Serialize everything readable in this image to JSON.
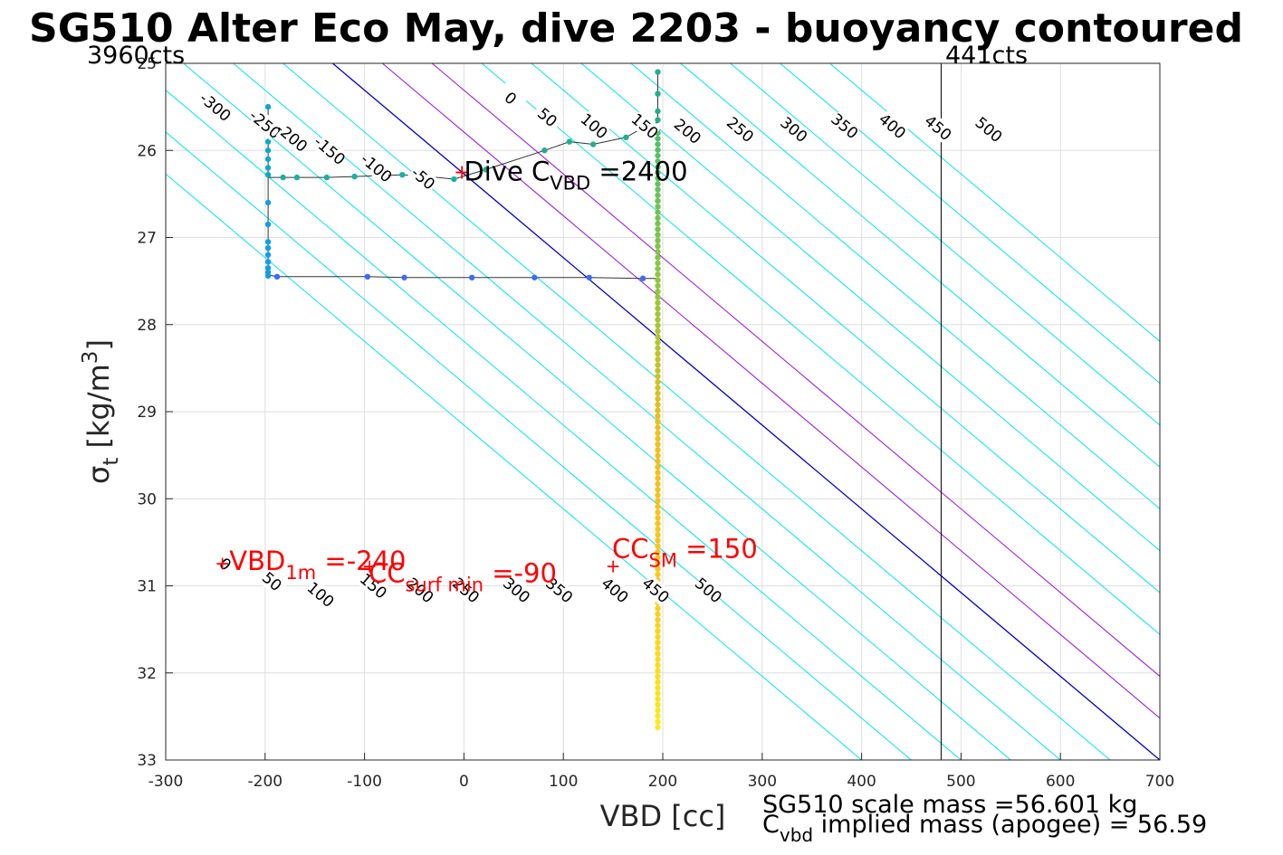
{
  "figure": {
    "title": "SG510 Alter Eco May, dive 2203 - buoyancy contoured",
    "footer_line1": "SG510 scale mass =56.601 kg",
    "footer_line2_main": "C",
    "footer_line2_sub": "vbd",
    "footer_line2_rest": " implied mass (apogee) = 56.59"
  },
  "chart_data": {
    "type": "scatter",
    "xlabel": "VBD [cc]",
    "ylabel_main": "σ",
    "ylabel_sub": "t",
    "ylabel_rest": " [kg/m",
    "ylabel_sup": "3",
    "ylabel_close": "]",
    "xlim": [
      -300,
      700
    ],
    "ylim": [
      25,
      33
    ],
    "y_reversed": true,
    "grid": true,
    "xticks": [
      -300,
      -200,
      -100,
      0,
      100,
      200,
      300,
      400,
      500,
      600,
      700
    ],
    "yticks": [
      25,
      26,
      27,
      28,
      29,
      30,
      31,
      32,
      33
    ],
    "xtick_labels": [
      "-300",
      "-200",
      "-100",
      "0",
      "100",
      "200",
      "300",
      "400",
      "500",
      "600",
      "700"
    ],
    "ytick_labels": [
      "25",
      "26",
      "27",
      "28",
      "29",
      "30",
      "31",
      "32",
      "33"
    ],
    "count_labels": [
      {
        "text": "3960cts",
        "x": -300
      },
      {
        "text": "441cts",
        "x": 480
      }
    ],
    "vertical_line_x": 480,
    "contours": {
      "slope_cc_per_sigma": 104,
      "levels": [
        -300,
        -250,
        -200,
        -150,
        -100,
        -50,
        0,
        50,
        100,
        150,
        200,
        250,
        300,
        350,
        400,
        450,
        500
      ],
      "top_labels": [
        {
          "text": "-300",
          "x": -250,
          "y": 25.5
        },
        {
          "text": "-250",
          "x": -200,
          "y": 25.7
        },
        {
          "text": "-200",
          "x": -173,
          "y": 25.85
        },
        {
          "text": "-150",
          "x": -135,
          "y": 26.0
        },
        {
          "text": "-100",
          "x": -88,
          "y": 26.2
        },
        {
          "text": "-50",
          "x": -41,
          "y": 26.32
        },
        {
          "text": "0",
          "x": 47,
          "y": 25.4
        },
        {
          "text": "50",
          "x": 84,
          "y": 25.62
        },
        {
          "text": "100",
          "x": 131,
          "y": 25.72
        },
        {
          "text": "150",
          "x": 182,
          "y": 25.72
        },
        {
          "text": "200",
          "x": 225,
          "y": 25.78
        },
        {
          "text": "250",
          "x": 278,
          "y": 25.76
        },
        {
          "text": "300",
          "x": 332,
          "y": 25.76
        },
        {
          "text": "350",
          "x": 383,
          "y": 25.72
        },
        {
          "text": "400",
          "x": 431,
          "y": 25.72
        },
        {
          "text": "450",
          "x": 477,
          "y": 25.74
        },
        {
          "text": "500",
          "x": 528,
          "y": 25.76
        }
      ],
      "bottom_labels": [
        {
          "text": "0",
          "x": -240,
          "y": 30.75
        },
        {
          "text": "50",
          "x": -193,
          "y": 30.95
        },
        {
          "text": "100",
          "x": -144,
          "y": 31.1
        },
        {
          "text": "150",
          "x": -91,
          "y": 31.0
        },
        {
          "text": "200",
          "x": -44,
          "y": 31.05
        },
        {
          "text": "250",
          "x": 2,
          "y": 31.05
        },
        {
          "text": "300",
          "x": 53,
          "y": 31.05
        },
        {
          "text": "350",
          "x": 96,
          "y": 31.05
        },
        {
          "text": "400",
          "x": 152,
          "y": 31.05
        },
        {
          "text": "450",
          "x": 193,
          "y": 31.05
        },
        {
          "text": "500",
          "x": 246,
          "y": 31.05
        }
      ]
    },
    "track": [
      [
        195,
        25.1
      ],
      [
        195,
        25.55
      ],
      [
        195,
        25.68
      ],
      [
        183,
        25.72
      ],
      [
        163,
        25.85
      ],
      [
        130,
        25.93
      ],
      [
        106,
        25.9
      ],
      [
        81,
        26.0
      ],
      [
        22,
        26.22
      ],
      [
        -10,
        26.33
      ],
      [
        -36,
        26.3
      ],
      [
        -62,
        26.28
      ],
      [
        -88,
        26.29
      ],
      [
        -110,
        26.3
      ],
      [
        -138,
        26.31
      ],
      [
        -168,
        26.31
      ],
      [
        -182,
        26.31
      ],
      [
        -197,
        26.31
      ],
      [
        -197,
        25.5
      ],
      [
        -197,
        27.43
      ],
      [
        -188,
        27.45
      ],
      [
        -97,
        27.45
      ],
      [
        -60,
        27.46
      ],
      [
        8,
        27.46
      ],
      [
        71,
        27.46
      ],
      [
        126,
        27.46
      ],
      [
        180,
        27.47
      ],
      [
        195,
        27.47
      ],
      [
        195,
        32.6
      ]
    ],
    "points": [
      {
        "x": 195,
        "y": 25.1,
        "color": "#1fb08c"
      },
      {
        "x": 195,
        "y": 25.35,
        "color": "#1fb08c"
      },
      {
        "x": 195,
        "y": 25.55,
        "color": "#1fb08c"
      },
      {
        "x": 195,
        "y": 25.65,
        "color": "#1fb08c"
      },
      {
        "x": 195,
        "y": 25.75,
        "color": "#1fb08c"
      },
      {
        "x": 183,
        "y": 25.72,
        "color": "#1fb08c"
      },
      {
        "x": 163,
        "y": 25.85,
        "color": "#1fb08c"
      },
      {
        "x": 130,
        "y": 25.93,
        "color": "#1fb08c"
      },
      {
        "x": 106,
        "y": 25.9,
        "color": "#1fb08c"
      },
      {
        "x": 81,
        "y": 26.0,
        "color": "#1fb08c"
      },
      {
        "x": 22,
        "y": 26.22,
        "color": "#1fb08c"
      },
      {
        "x": -10,
        "y": 26.33,
        "color": "#17b3a0"
      },
      {
        "x": -36,
        "y": 26.3,
        "color": "#17b3a0"
      },
      {
        "x": -62,
        "y": 26.28,
        "color": "#17b3a0"
      },
      {
        "x": -88,
        "y": 26.29,
        "color": "#17b3a0"
      },
      {
        "x": -110,
        "y": 26.3,
        "color": "#17b3a0"
      },
      {
        "x": -138,
        "y": 26.31,
        "color": "#17b3a0"
      },
      {
        "x": -168,
        "y": 26.31,
        "color": "#17b3a0"
      },
      {
        "x": -182,
        "y": 26.31,
        "color": "#17b3a0"
      },
      {
        "x": -197,
        "y": 25.5,
        "color": "#0fa9c8"
      },
      {
        "x": -197,
        "y": 25.65,
        "color": "#0fa9c8"
      },
      {
        "x": -197,
        "y": 25.8,
        "color": "#0fa9c8"
      },
      {
        "x": -197,
        "y": 25.9,
        "color": "#0fa9c8"
      },
      {
        "x": -197,
        "y": 26.0,
        "color": "#0fa9c8"
      },
      {
        "x": -197,
        "y": 26.1,
        "color": "#0fa9c8"
      },
      {
        "x": -197,
        "y": 26.2,
        "color": "#0fa9c8"
      },
      {
        "x": -197,
        "y": 26.28,
        "color": "#0fa9c8"
      },
      {
        "x": -197,
        "y": 26.6,
        "color": "#159ee0"
      },
      {
        "x": -197,
        "y": 26.85,
        "color": "#159ee0"
      },
      {
        "x": -197,
        "y": 27.05,
        "color": "#159ee0"
      },
      {
        "x": -197,
        "y": 27.12,
        "color": "#159ee0"
      },
      {
        "x": -197,
        "y": 27.2,
        "color": "#159ee0"
      },
      {
        "x": -197,
        "y": 27.28,
        "color": "#159ee0"
      },
      {
        "x": -197,
        "y": 27.35,
        "color": "#159ee0"
      },
      {
        "x": -197,
        "y": 27.4,
        "color": "#159ee0"
      },
      {
        "x": -197,
        "y": 27.44,
        "color": "#159ee0"
      },
      {
        "x": -188,
        "y": 27.45,
        "color": "#3a6ef2"
      },
      {
        "x": -97,
        "y": 27.45,
        "color": "#3a6ef2"
      },
      {
        "x": -60,
        "y": 27.46,
        "color": "#3a6ef2"
      },
      {
        "x": 8,
        "y": 27.46,
        "color": "#3a6ef2"
      },
      {
        "x": 71,
        "y": 27.46,
        "color": "#3a6ef2"
      },
      {
        "x": 126,
        "y": 27.46,
        "color": "#3a6ef2"
      },
      {
        "x": 180,
        "y": 27.47,
        "color": "#3a6ef2"
      }
    ],
    "ascent_column": {
      "x": 195,
      "y_start": 25.8,
      "y_end": 32.6,
      "step": 0.065
    },
    "annotations": [
      {
        "marker_x": -243,
        "marker_y": 30.75,
        "main": "VBD",
        "sub": "1m",
        "rest": " =-240",
        "tx": -236,
        "ty": 30.82
      },
      {
        "marker_x": -95,
        "marker_y": 30.78,
        "main": "CC",
        "sub": "surf min",
        "rest": " =-90",
        "tx": -96,
        "ty": 30.96
      },
      {
        "marker_x": 150,
        "marker_y": 30.78,
        "main": "CC",
        "sub": "SM",
        "rest": " =150",
        "tx": 149,
        "ty": 30.68
      }
    ],
    "dive_cvbd": {
      "marker_x": -2,
      "marker_y": 26.25,
      "main": "Dive C",
      "sub": "VBD",
      "rest": " =2400",
      "tx": 0,
      "ty": 26.22
    }
  }
}
